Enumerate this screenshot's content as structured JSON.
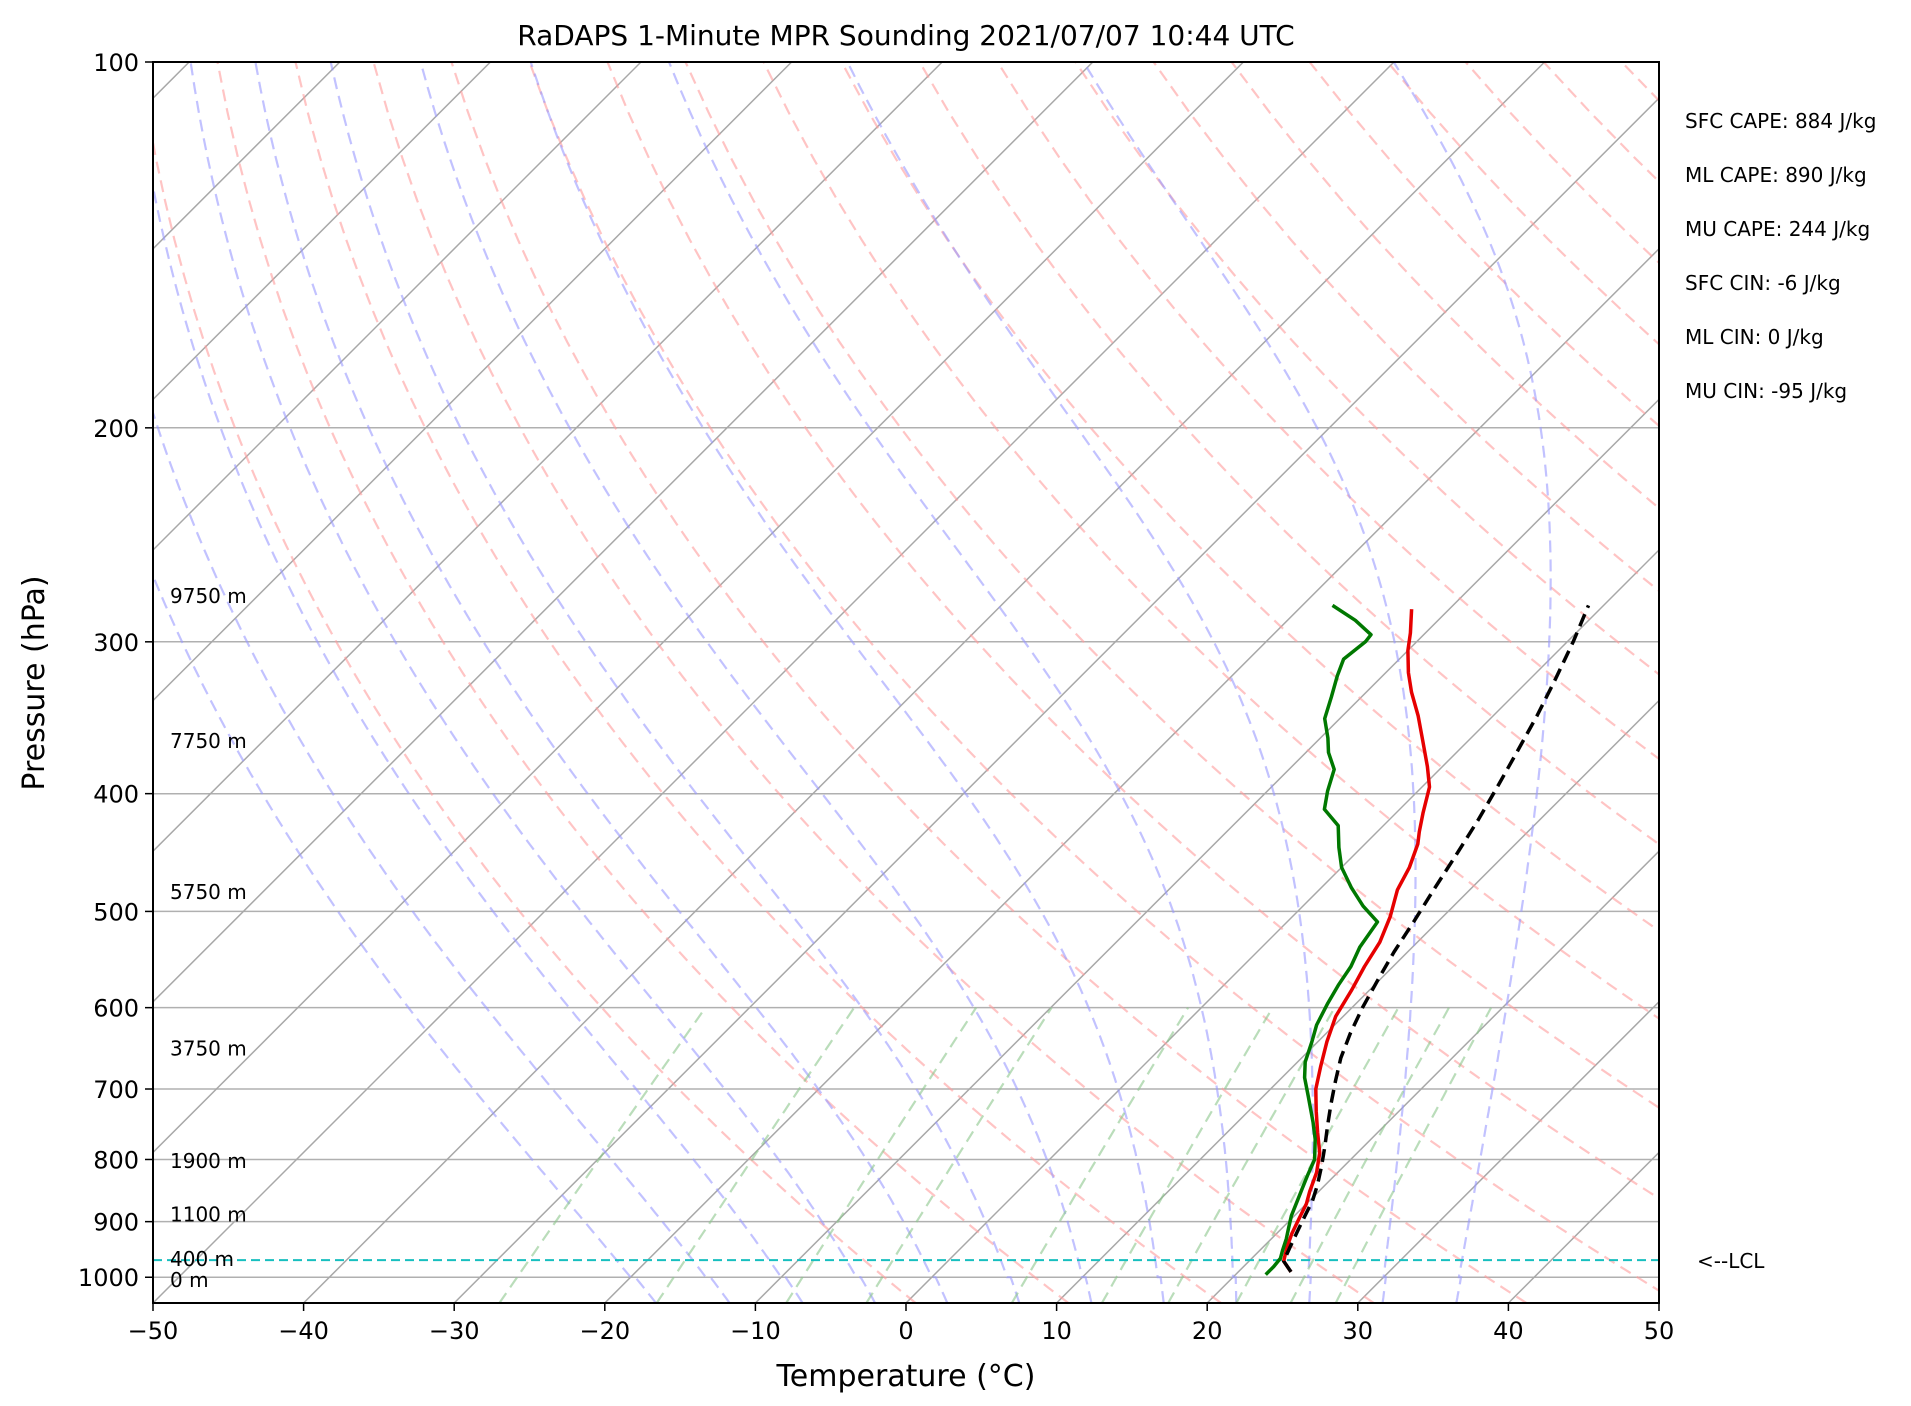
{
  "chart_data": {
    "type": "line",
    "chart_kind": "skew-T log-p sounding",
    "title": "RaDAPS 1-Minute MPR Sounding 2021/07/07 10:44 UTC",
    "xlabel": "Temperature (°C)",
    "ylabel": "Pressure (hPa)",
    "xlim": [
      -50,
      50
    ],
    "ylim": [
      1050,
      100
    ],
    "y_scale": "log",
    "grid": true,
    "x_ticks": [
      -50,
      -40,
      -30,
      -20,
      -10,
      0,
      10,
      20,
      30,
      40,
      50
    ],
    "x_tick_labels": [
      "−50",
      "−40",
      "−30",
      "−20",
      "−10",
      "0",
      "10",
      "20",
      "30",
      "40",
      "50"
    ],
    "y_ticks": [
      100,
      200,
      300,
      400,
      500,
      600,
      700,
      800,
      900,
      1000
    ],
    "y_tick_labels": [
      "100",
      "200",
      "300",
      "400",
      "500",
      "600",
      "700",
      "800",
      "900",
      "1000"
    ],
    "series": [
      {
        "role": "temperature",
        "color": "#e60000",
        "dash": "solid",
        "points": [
          [
            23.5,
            990
          ],
          [
            22.3,
            970
          ],
          [
            21.6,
            945
          ],
          [
            21.0,
            920
          ],
          [
            20.5,
            895
          ],
          [
            20.0,
            870
          ],
          [
            19.4,
            850
          ],
          [
            18.6,
            820
          ],
          [
            17.5,
            790
          ],
          [
            16.0,
            760
          ],
          [
            14.5,
            730
          ],
          [
            13.0,
            700
          ],
          [
            11.8,
            670
          ],
          [
            10.6,
            640
          ],
          [
            9.5,
            610
          ],
          [
            8.8,
            580
          ],
          [
            8.1,
            555
          ],
          [
            7.5,
            530
          ],
          [
            6.5,
            505
          ],
          [
            5.2,
            480
          ],
          [
            4.5,
            460
          ],
          [
            3.5,
            440
          ],
          [
            2.8,
            430
          ],
          [
            1.8,
            415
          ],
          [
            0.5,
            395
          ],
          [
            -1.0,
            380
          ],
          [
            -3.0,
            362
          ],
          [
            -5.0,
            345
          ],
          [
            -7.0,
            330
          ],
          [
            -8.5,
            318
          ],
          [
            -10.0,
            305
          ],
          [
            -11.0,
            295
          ],
          [
            -12.5,
            282
          ]
        ]
      },
      {
        "role": "dewpoint",
        "color": "#007800",
        "dash": "solid",
        "points": [
          [
            22.0,
            995
          ],
          [
            22.0,
            980
          ],
          [
            21.9,
            965
          ],
          [
            21.5,
            950
          ],
          [
            21.0,
            930
          ],
          [
            20.4,
            910
          ],
          [
            19.8,
            890
          ],
          [
            19.2,
            865
          ],
          [
            18.7,
            845
          ],
          [
            18.2,
            825
          ],
          [
            17.6,
            800
          ],
          [
            16.3,
            770
          ],
          [
            15.0,
            745
          ],
          [
            13.0,
            710
          ],
          [
            11.5,
            685
          ],
          [
            10.5,
            665
          ],
          [
            9.6,
            640
          ],
          [
            8.8,
            620
          ],
          [
            8.1,
            595
          ],
          [
            7.6,
            575
          ],
          [
            7.2,
            555
          ],
          [
            6.5,
            535
          ],
          [
            6.0,
            510
          ],
          [
            4.0,
            495
          ],
          [
            2.0,
            478
          ],
          [
            0.0,
            460
          ],
          [
            -1.5,
            443
          ],
          [
            -3.0,
            425
          ],
          [
            -5.0,
            412
          ],
          [
            -6.0,
            398
          ],
          [
            -7.0,
            382
          ],
          [
            -8.5,
            370
          ],
          [
            -9.5,
            360
          ],
          [
            -11.0,
            347
          ],
          [
            -12.0,
            333
          ],
          [
            -13.0,
            320
          ],
          [
            -13.7,
            310
          ],
          [
            -13.4,
            300
          ],
          [
            -13.5,
            296
          ],
          [
            -15.5,
            288
          ],
          [
            -18.0,
            280
          ]
        ]
      },
      {
        "role": "parcel",
        "color": "#000000",
        "dash": "dashed",
        "points": [
          [
            23.5,
            990
          ],
          [
            22.3,
            970
          ],
          [
            21.8,
            945
          ],
          [
            21.2,
            915
          ],
          [
            20.7,
            890
          ],
          [
            20.2,
            865
          ],
          [
            19.5,
            840
          ],
          [
            18.5,
            810
          ],
          [
            17.4,
            780
          ],
          [
            16.2,
            750
          ],
          [
            15.0,
            720
          ],
          [
            13.8,
            690
          ],
          [
            12.6,
            660
          ],
          [
            11.6,
            630
          ],
          [
            10.7,
            600
          ],
          [
            9.9,
            570
          ],
          [
            9.1,
            540
          ],
          [
            8.4,
            510
          ],
          [
            7.6,
            480
          ],
          [
            6.8,
            450
          ],
          [
            5.9,
            420
          ],
          [
            5.0,
            395
          ],
          [
            4.0,
            370
          ],
          [
            2.9,
            345
          ],
          [
            1.7,
            322
          ],
          [
            0.4,
            300
          ],
          [
            -1.0,
            280
          ]
        ]
      }
    ],
    "lcl_hpa": 968,
    "lcl_label": "<--LCL",
    "height_labels": [
      {
        "text": "9750 m",
        "hpa": 275
      },
      {
        "text": "7750 m",
        "hpa": 362
      },
      {
        "text": "5750 m",
        "hpa": 482
      },
      {
        "text": "3750 m",
        "hpa": 648
      },
      {
        "text": "1900 m",
        "hpa": 802
      },
      {
        "text": "1100 m",
        "hpa": 888
      },
      {
        "text": "400 m",
        "hpa": 966
      },
      {
        "text": "0 m",
        "hpa": 1005
      }
    ],
    "annotations": [
      "SFC CAPE: 884 J/kg",
      "ML CAPE: 890 J/kg",
      "MU CAPE: 244 J/kg",
      "SFC CIN: -6 J/kg",
      "ML CIN: 0 J/kg",
      "MU CIN: -95 J/kg"
    ],
    "isotherm_start_temps": [
      -150,
      -140,
      -130,
      -120,
      -110,
      -100,
      -90,
      -80,
      -70,
      -60,
      -50,
      -40,
      -30,
      -20,
      -10,
      0,
      10,
      20,
      30,
      40,
      50
    ],
    "dry_adiabat_thetas": [
      270,
      280,
      290,
      300,
      310,
      320,
      330,
      340,
      350,
      360,
      370,
      380,
      390,
      400,
      410,
      420,
      430,
      440,
      450,
      460
    ],
    "moist_adiabat_start_temps": [
      -20,
      -15,
      -10,
      -5,
      0,
      5,
      10,
      15,
      20,
      25,
      30,
      35
    ],
    "mixing_ratio_lines": [
      0.4,
      1,
      2,
      3,
      6,
      9,
      12,
      16,
      20,
      24
    ],
    "colors": {
      "grid": "#b0b0b0",
      "isotherm": "#a8a8a8",
      "dry_adiabat": "#ff9c9c",
      "moist_adiabat": "#9a9aff",
      "mixing_ratio": "#8cc68c",
      "lcl": "#17bfbf"
    }
  }
}
